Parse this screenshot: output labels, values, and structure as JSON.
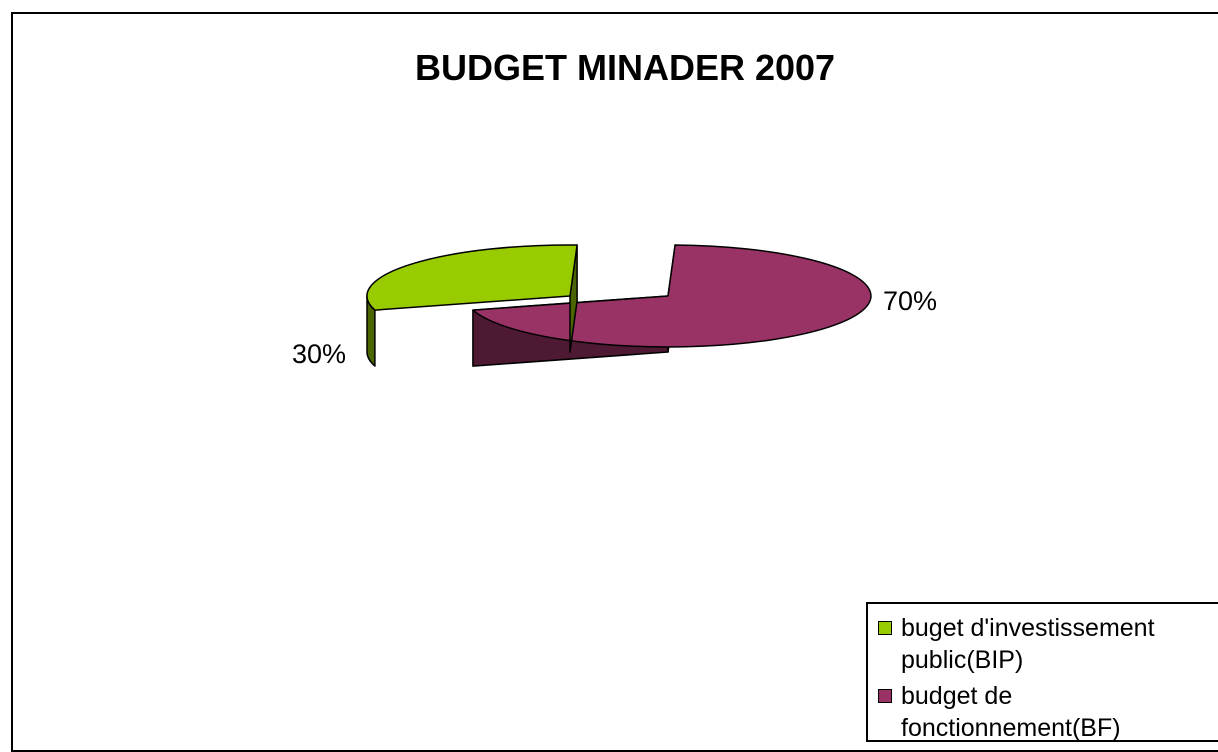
{
  "chart_data": {
    "type": "pie",
    "title": "BUDGET MINADER 2007",
    "categories": [
      "buget d'investissement public(BIP)",
      "budget de fonctionnement(BF)"
    ],
    "values": [
      30,
      70
    ],
    "labels": [
      "30%",
      "70%"
    ],
    "legend_position": "bottom-right",
    "colors": {
      "bip_top": "#99CC00",
      "bip_side": "#4B6600",
      "bf_top": "#993366",
      "bf_side": "#4E1A33"
    }
  },
  "legend": {
    "items": [
      {
        "line1": "buget d'investissement",
        "line2": "public(BIP)"
      },
      {
        "line1": "budget de",
        "line2": "fonctionnement(BF)"
      }
    ]
  }
}
